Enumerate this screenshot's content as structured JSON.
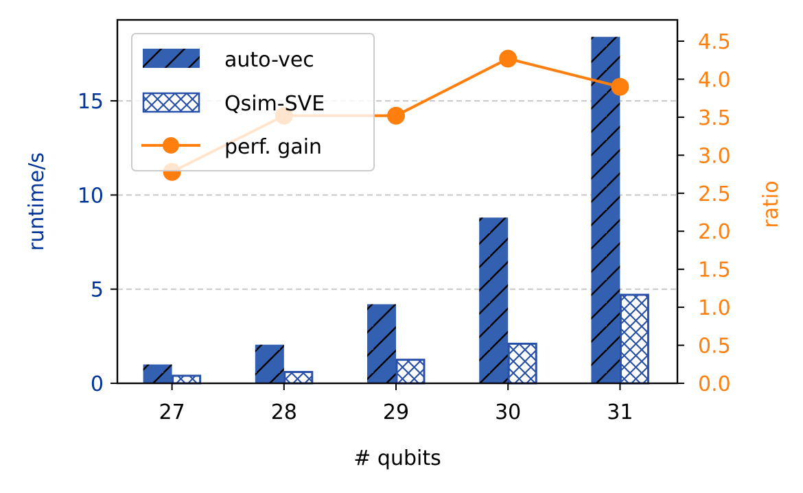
{
  "chart_data": {
    "type": "bar",
    "categories": [
      "27",
      "28",
      "29",
      "30",
      "31"
    ],
    "xlabel": "# qubits",
    "ylabel": "runtime/s",
    "y2label": "ratio",
    "ylim": [
      0,
      19.3
    ],
    "y2lim": [
      0,
      4.78
    ],
    "yticks": [
      "0",
      "5",
      "10",
      "15"
    ],
    "y2ticks": [
      "0.0",
      "0.5",
      "1.0",
      "1.5",
      "2.0",
      "2.5",
      "3.0",
      "3.5",
      "4.0",
      "4.5"
    ],
    "grid": "horizontal dashed (left axis)",
    "legend_position": "top-left",
    "series": [
      {
        "name": "auto-vec",
        "kind": "bar",
        "axis": "left",
        "hatch": "diagonal",
        "values": [
          1.0,
          2.05,
          4.2,
          8.8,
          18.4
        ]
      },
      {
        "name": "Qsim-SVE",
        "kind": "bar",
        "axis": "left",
        "hatch": "crosshatch",
        "values": [
          0.4,
          0.6,
          1.25,
          2.1,
          4.7
        ]
      },
      {
        "name": "perf. gain",
        "kind": "line",
        "axis": "right",
        "marker": "circle",
        "values": [
          2.78,
          3.52,
          3.52,
          4.27,
          3.9
        ]
      }
    ],
    "colors": {
      "bar": "#3360b1",
      "bar_edge": "#2850a8",
      "hatch": "#000000",
      "line": "#ff7f0e",
      "left_axis_text": "#00359a",
      "right_axis_text": "#ff7f0e",
      "grid": "#c8c8c8"
    }
  }
}
